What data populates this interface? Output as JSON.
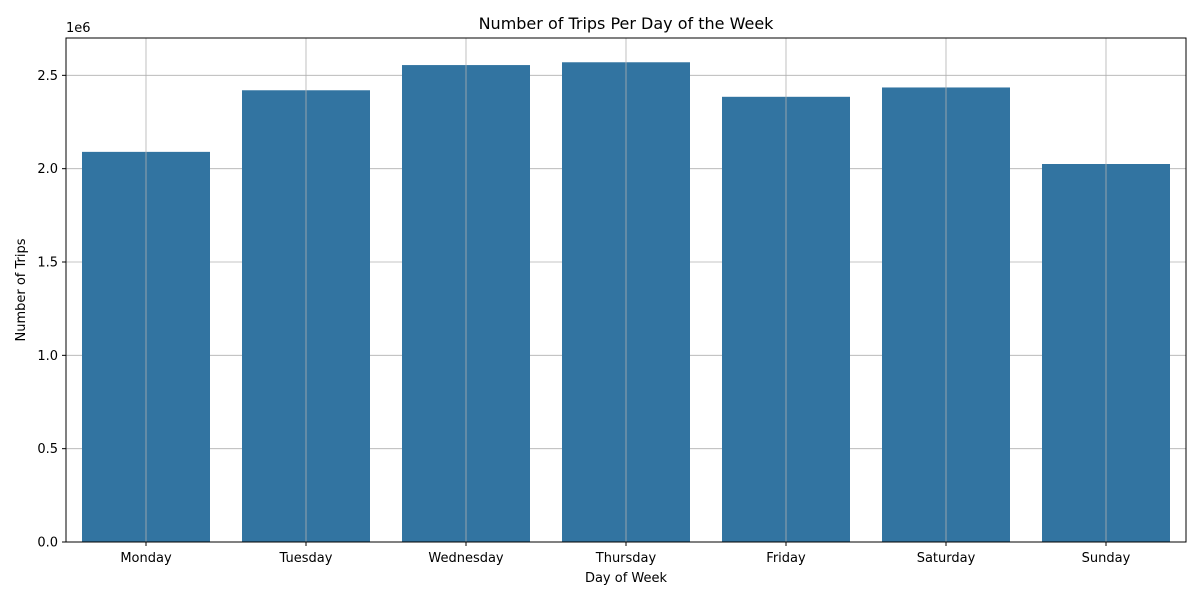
{
  "chart_data": {
    "type": "bar",
    "title": "Number of Trips Per Day of the Week",
    "xlabel": "Day of Week",
    "ylabel": "Number of Trips",
    "y_offset_label": "1e6",
    "categories": [
      "Monday",
      "Tuesday",
      "Wednesday",
      "Thursday",
      "Friday",
      "Saturday",
      "Sunday"
    ],
    "values": [
      2090000,
      2420000,
      2555000,
      2570000,
      2385000,
      2435000,
      2025000
    ],
    "ylim": [
      0,
      2700000
    ],
    "yticks": [
      0,
      500000,
      1000000,
      1500000,
      2000000,
      2500000
    ],
    "ytick_labels": [
      "0.0",
      "0.5",
      "1.0",
      "1.5",
      "2.0",
      "2.5"
    ],
    "grid": true,
    "bar_color": "#3274a1",
    "grid_color": "#b0b0b0"
  }
}
